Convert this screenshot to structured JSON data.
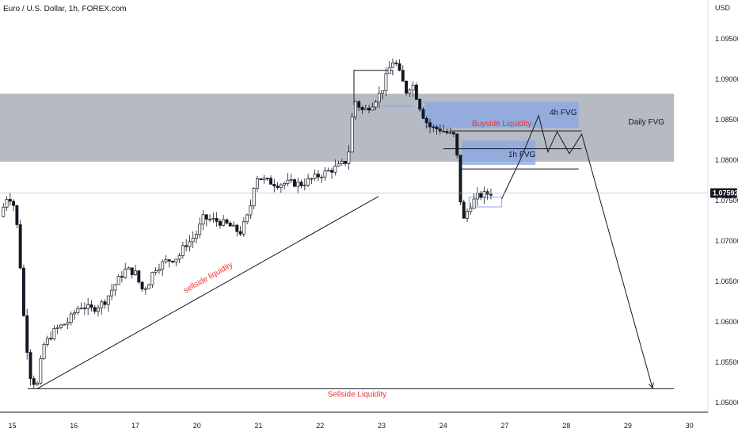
{
  "chart_data": {
    "type": "candlestick",
    "title": "Euro / U.S. Dollar, 1h, FOREX.com",
    "currency": "USD",
    "ylim": [
      1.0488,
      1.0998
    ],
    "y_ticks": [
      "1.09500",
      "1.09000",
      "1.08500",
      "1.08000",
      "1.07500",
      "1.07000",
      "1.06500",
      "1.06000",
      "1.05500",
      "1.05000"
    ],
    "x_ticks": [
      {
        "label": "15",
        "day": 0
      },
      {
        "label": "16",
        "day": 1
      },
      {
        "label": "17",
        "day": 2
      },
      {
        "label": "20",
        "day": 3
      },
      {
        "label": "21",
        "day": 4
      },
      {
        "label": "22",
        "day": 5
      },
      {
        "label": "23",
        "day": 6
      },
      {
        "label": "24",
        "day": 7
      },
      {
        "label": "27",
        "day": 8
      },
      {
        "label": "28",
        "day": 9
      },
      {
        "label": "29",
        "day": 10
      },
      {
        "label": "30",
        "day": 11
      }
    ],
    "x_range": [
      -0.2,
      11.3
    ],
    "last_price": "1.07592",
    "price_path": [
      [
        -0.2,
        1.073
      ],
      [
        -0.07,
        1.0758
      ],
      [
        0.05,
        1.074
      ],
      [
        0.12,
        1.068
      ],
      [
        0.2,
        1.059
      ],
      [
        0.3,
        1.053
      ],
      [
        0.4,
        1.052
      ],
      [
        0.5,
        1.057
      ],
      [
        0.7,
        1.059
      ],
      [
        0.9,
        1.06
      ],
      [
        1.1,
        1.062
      ],
      [
        1.3,
        1.0615
      ],
      [
        1.5,
        1.0625
      ],
      [
        1.7,
        1.065
      ],
      [
        1.85,
        1.0665
      ],
      [
        2.0,
        1.066
      ],
      [
        2.1,
        1.064
      ],
      [
        2.2,
        1.0645
      ],
      [
        2.3,
        1.0665
      ],
      [
        2.5,
        1.0675
      ],
      [
        2.7,
        1.068
      ],
      [
        2.8,
        1.0695
      ],
      [
        2.9,
        1.07
      ],
      [
        3.0,
        1.071
      ],
      [
        3.1,
        1.0728
      ],
      [
        3.3,
        1.0725
      ],
      [
        3.5,
        1.072
      ],
      [
        3.7,
        1.071
      ],
      [
        3.85,
        1.0735
      ],
      [
        3.95,
        1.078
      ],
      [
        4.1,
        1.0775
      ],
      [
        4.3,
        1.077
      ],
      [
        4.5,
        1.0772
      ],
      [
        4.7,
        1.077
      ],
      [
        4.9,
        1.0778
      ],
      [
        5.1,
        1.0785
      ],
      [
        5.3,
        1.0792
      ],
      [
        5.45,
        1.08
      ],
      [
        5.55,
        1.0875
      ],
      [
        5.7,
        1.086
      ],
      [
        5.85,
        1.087
      ],
      [
        6.0,
        1.0885
      ],
      [
        6.1,
        1.091
      ],
      [
        6.2,
        1.0925
      ],
      [
        6.3,
        1.0905
      ],
      [
        6.4,
        1.0885
      ],
      [
        6.5,
        1.0895
      ],
      [
        6.6,
        1.087
      ],
      [
        6.7,
        1.085
      ],
      [
        6.8,
        1.084
      ],
      [
        6.95,
        1.0838
      ],
      [
        7.1,
        1.0832
      ],
      [
        7.18,
        1.083
      ],
      [
        7.24,
        1.0795
      ],
      [
        7.28,
        1.075
      ],
      [
        7.33,
        1.0725
      ],
      [
        7.42,
        1.0742
      ],
      [
        7.55,
        1.0755
      ],
      [
        7.7,
        1.0758
      ],
      [
        7.8,
        1.076
      ]
    ],
    "daily_fvg": {
      "y_top": 1.0882,
      "y_bottom": 1.0798,
      "x_start": -0.2,
      "x_end": 10.75
    },
    "fvg_4h": {
      "y_top": 1.0872,
      "y_bottom": 1.084,
      "x_start": 6.7,
      "x_end": 9.2
    },
    "fvg_1h": {
      "y_top": 1.0824,
      "y_bottom": 1.0794,
      "x_start": 7.3,
      "x_end": 8.5
    },
    "fvg_small_1": {
      "y_top": 1.0868,
      "y_bottom": 1.0866,
      "x_start": 6.0,
      "x_end": 6.5
    },
    "buyside_liquidity_level": 1.0836,
    "level_1h_fvg_top": 1.0824,
    "level_1h_fvg_bottom": 1.0814,
    "level_low_box": 1.0789,
    "sellside_liquidity_level": 1.0517,
    "trendline": {
      "from": [
        0.4,
        1.0517
      ],
      "to": [
        5.95,
        1.0755
      ]
    },
    "high_box": {
      "x_start": 5.55,
      "x_end": 6.18,
      "y": 1.0911
    },
    "projection_path": [
      [
        7.95,
        1.0752
      ],
      [
        8.25,
        1.08
      ],
      [
        8.55,
        1.0855
      ],
      [
        8.7,
        1.081
      ],
      [
        8.85,
        1.0835
      ],
      [
        9.05,
        1.0808
      ],
      [
        9.25,
        1.0832
      ],
      [
        10.4,
        1.0518
      ]
    ],
    "consolidation_box": {
      "x_start": 7.42,
      "x_end": 7.95,
      "y_top": 1.0754,
      "y_bottom": 1.0742
    },
    "annotations": {
      "daily_fvg_label": "Daily FVG",
      "fvg_4h_label": "4h FVG",
      "fvg_1h_label": "1h FVG",
      "buyside_label": "Buyside Liquidity",
      "sellside_label": "Sellside Liquidity",
      "trend_label": "sellside liquidity"
    },
    "colors": {
      "up": "#131722",
      "down": "#131722",
      "daily_fvg": "#9da3ad",
      "fvg_box": "#87a7e6",
      "label_red": "#e53935",
      "price_tag": "#131722",
      "grid_line": "#b2b5be"
    }
  }
}
